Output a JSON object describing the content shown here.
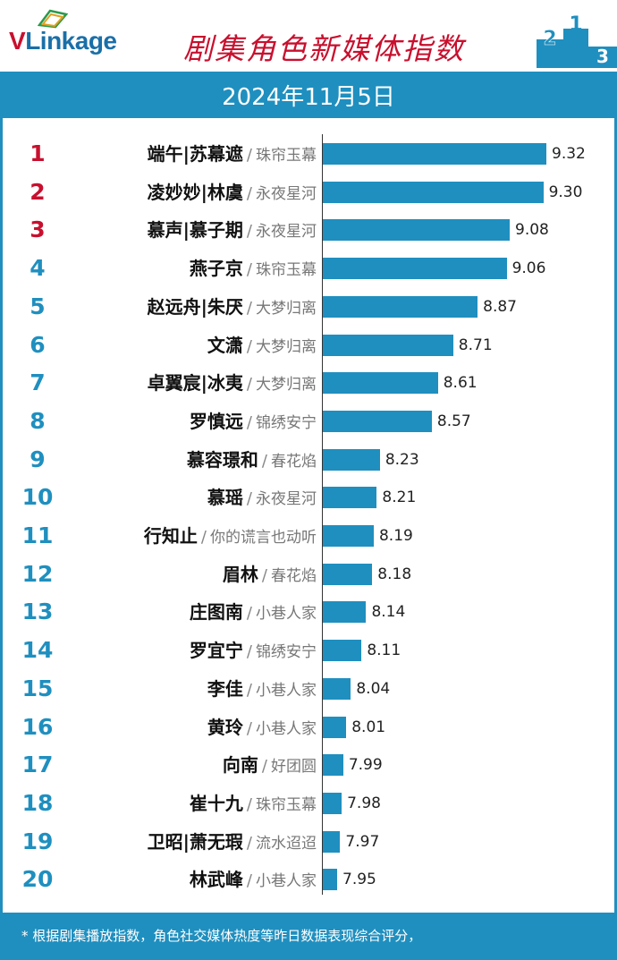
{
  "header": {
    "logo_v": "V",
    "logo_rest": "Linkage",
    "title": "剧集角色新媒体指数",
    "podium_digits": [
      "2",
      "1",
      "3"
    ]
  },
  "date": "2024年11月5日",
  "colors": {
    "accent": "#1f8fbf",
    "top_rank": "#c8102e",
    "bar": "#1f8fbf"
  },
  "chart_data": {
    "type": "bar",
    "orientation": "horizontal",
    "title": "剧集角色新媒体指数",
    "xlim": [
      7.8,
      9.4
    ],
    "ranks": [
      "1",
      "2",
      "3",
      "4",
      "5",
      "6",
      "7",
      "8",
      "9",
      "10",
      "11",
      "12",
      "13",
      "14",
      "15",
      "16",
      "17",
      "18",
      "19",
      "20"
    ],
    "names": [
      "端午|苏幕遮",
      "凌妙妙|林虞",
      "慕声|慕子期",
      "燕子京",
      "赵远舟|朱厌",
      "文潇",
      "卓翼宸|冰夷",
      "罗慎远",
      "慕容璟和",
      "慕瑶",
      "行知止",
      "眉林",
      "庄图南",
      "罗宜宁",
      "李佳",
      "黄玲",
      "向南",
      "崔十九",
      "卫昭|萧无瑕",
      "林武峰"
    ],
    "shows": [
      "珠帘玉幕",
      "永夜星河",
      "永夜星河",
      "珠帘玉幕",
      "大梦归离",
      "大梦归离",
      "大梦归离",
      "锦绣安宁",
      "春花焰",
      "永夜星河",
      "你的谎言也动听",
      "春花焰",
      "小巷人家",
      "锦绣安宁",
      "小巷人家",
      "小巷人家",
      "好团圆",
      "珠帘玉幕",
      "流水迢迢",
      "小巷人家"
    ],
    "separator": "/",
    "values": [
      9.32,
      9.3,
      9.08,
      9.06,
      8.87,
      8.71,
      8.61,
      8.57,
      8.23,
      8.21,
      8.19,
      8.18,
      8.14,
      8.11,
      8.04,
      8.01,
      7.99,
      7.98,
      7.97,
      7.95
    ],
    "value_labels": [
      "9.32",
      "9.30",
      "9.08",
      "9.06",
      "8.87",
      "8.71",
      "8.61",
      "8.57",
      "8.23",
      "8.21",
      "8.19",
      "8.18",
      "8.14",
      "8.11",
      "8.04",
      "8.01",
      "7.99",
      "7.98",
      "7.97",
      "7.95"
    ]
  },
  "footer": {
    "note": "* 根据剧集播放指数，角色社交媒体热度等昨日数据表现综合评分，"
  }
}
